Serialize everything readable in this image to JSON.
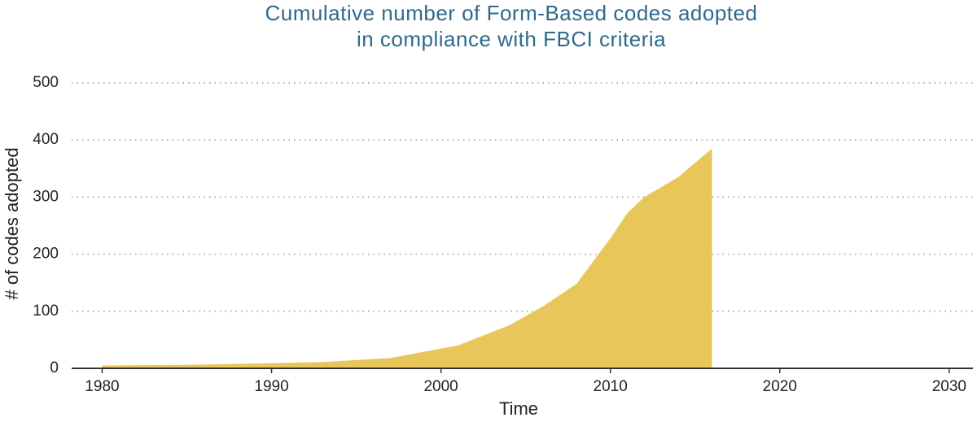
{
  "chart_data": {
    "type": "area",
    "title": [
      "Cumulative number of Form-Based codes adopted",
      "in compliance with FBCI criteria"
    ],
    "x_label": "Time",
    "y_label": "# of codes adopted",
    "x": [
      1980,
      1985,
      1990,
      1993,
      1997,
      2001,
      2004,
      2006,
      2008,
      2010,
      2011,
      2012,
      2014,
      2015,
      2016
    ],
    "series": [
      {
        "name": "Codes adopted",
        "color": "#e8c65a",
        "values": [
          5,
          6,
          9,
          11,
          18,
          40,
          75,
          108,
          148,
          228,
          272,
          300,
          335,
          360,
          385
        ]
      }
    ],
    "xlim": [
      1978.2,
      2031.4
    ],
    "xticks": [
      1980,
      1990,
      2000,
      2010,
      2020,
      2030
    ],
    "ylim": [
      0,
      500
    ],
    "yticks": [
      0,
      100,
      200,
      300,
      400,
      500
    ],
    "grid": true
  }
}
